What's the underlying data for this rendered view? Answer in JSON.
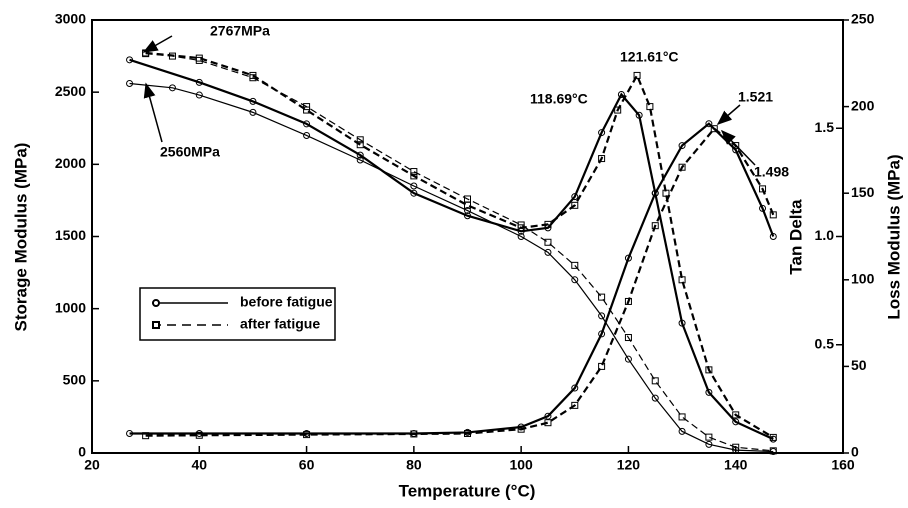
{
  "chart_data": {
    "type": "line",
    "xlabel": "Temperature (°C)",
    "ylabel": "Storage Modulus (MPa)",
    "y2label": "Loss Modulus (MPa)",
    "y3label": "Tan Delta",
    "xlim": [
      20,
      160
    ],
    "xticks": [
      20,
      40,
      60,
      80,
      100,
      120,
      140,
      160
    ],
    "ylim": [
      0,
      3000
    ],
    "yticks": [
      0,
      500,
      1000,
      1500,
      2000,
      2500,
      3000
    ],
    "y2lim": [
      0,
      250
    ],
    "y2ticks": [
      0,
      50,
      100,
      150,
      200,
      250
    ],
    "y3lim": [
      0,
      2
    ],
    "y3ticks": [
      0.5,
      {
        "value": 1,
        "label": "1.0"
      },
      1.5
    ],
    "series": [
      {
        "name": "before fatigue",
        "marker": "circle",
        "dashed": false,
        "color": "#000000",
        "storage": {
          "x": [
            27,
            35,
            40,
            50,
            60,
            70,
            80,
            90,
            100,
            105,
            110,
            115,
            120,
            125,
            130,
            135,
            140,
            147
          ],
          "values": [
            2560,
            2530,
            2480,
            2360,
            2200,
            2030,
            1850,
            1680,
            1500,
            1390,
            1200,
            950,
            650,
            380,
            150,
            60,
            20,
            10
          ]
        },
        "loss": {
          "x": [
            27,
            40,
            50,
            60,
            70,
            80,
            90,
            100,
            105,
            110,
            115,
            118.69,
            122,
            125,
            130,
            135,
            140,
            147
          ],
          "values": [
            227,
            214,
            203,
            190,
            172,
            150,
            137,
            128,
            130,
            148,
            185,
            207,
            195,
            150,
            75,
            35,
            18,
            8
          ]
        },
        "tan": {
          "x": [
            27,
            40,
            60,
            80,
            90,
            100,
            105,
            110,
            115,
            120,
            125,
            130,
            135,
            140,
            145,
            147
          ],
          "values": [
            0.09,
            0.09,
            0.09,
            0.09,
            0.095,
            0.12,
            0.17,
            0.3,
            0.55,
            0.9,
            1.2,
            1.42,
            1.521,
            1.4,
            1.13,
            1.0
          ]
        }
      },
      {
        "name": "after fatigue",
        "marker": "square",
        "dashed": true,
        "color": "#000000",
        "storage": {
          "x": [
            30,
            35,
            40,
            50,
            60,
            70,
            80,
            90,
            100,
            105,
            110,
            115,
            120,
            125,
            130,
            135,
            140,
            147
          ],
          "values": [
            2767,
            2750,
            2720,
            2600,
            2400,
            2170,
            1950,
            1760,
            1580,
            1460,
            1300,
            1080,
            800,
            500,
            250,
            110,
            40,
            15
          ]
        },
        "loss": {
          "x": [
            30,
            40,
            50,
            60,
            70,
            80,
            90,
            100,
            105,
            110,
            115,
            118,
            121.61,
            124,
            127,
            130,
            135,
            140,
            147
          ],
          "values": [
            231,
            228,
            218,
            198,
            178,
            160,
            143,
            130,
            132,
            143,
            170,
            198,
            218,
            200,
            150,
            100,
            48,
            22,
            9
          ]
        },
        "tan": {
          "x": [
            30,
            40,
            60,
            80,
            90,
            100,
            105,
            110,
            115,
            120,
            125,
            130,
            136,
            140,
            145,
            147
          ],
          "values": [
            0.08,
            0.082,
            0.085,
            0.088,
            0.09,
            0.11,
            0.14,
            0.22,
            0.4,
            0.7,
            1.05,
            1.32,
            1.498,
            1.42,
            1.22,
            1.1
          ]
        }
      }
    ],
    "annotations": [
      "2767MPa",
      "2560MPa",
      "118.69°C",
      "121.61°C",
      "1.521",
      "1.498"
    ]
  }
}
